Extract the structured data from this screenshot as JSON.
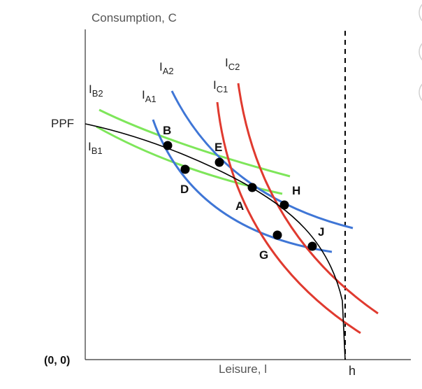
{
  "diagram": {
    "y_axis_label": "Consumption, C",
    "x_axis_label": "Leisure, l",
    "origin_label": "(0, 0)",
    "h_label": "h",
    "ppf_label": "PPF",
    "curves": {
      "ib2": {
        "base": "I",
        "sub": "B2",
        "color": "#7ee65a"
      },
      "ib1": {
        "base": "I",
        "sub": "B1",
        "color": "#7ee65a"
      },
      "ia2": {
        "base": "I",
        "sub": "A2",
        "color": "#3f76d6"
      },
      "ia1": {
        "base": "I",
        "sub": "A1",
        "color": "#3f76d6"
      },
      "ic2": {
        "base": "I",
        "sub": "C2",
        "color": "#e03a2f"
      },
      "ic1": {
        "base": "I",
        "sub": "C1",
        "color": "#e03a2f"
      },
      "ppf": {
        "color": "#000000"
      }
    },
    "points": {
      "A": "A",
      "B": "B",
      "D": "D",
      "E": "E",
      "G": "G",
      "H": "H",
      "J": "J"
    }
  }
}
